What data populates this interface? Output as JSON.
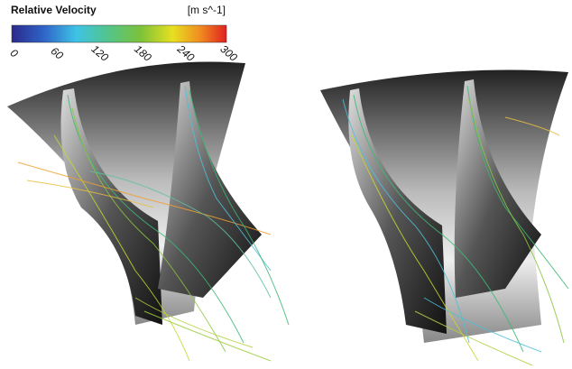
{
  "colorbar": {
    "title": "Relative Velocity",
    "unit": "[m s^-1]",
    "ticks": [
      0,
      60,
      120,
      180,
      240,
      300
    ]
  }
}
